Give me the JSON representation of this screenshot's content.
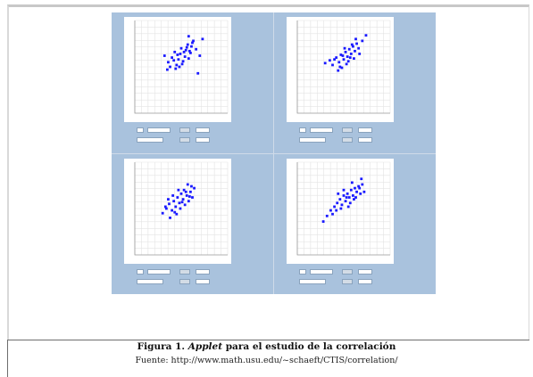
{
  "caption": {
    "prefix": "Figura 1.",
    "italic": "Applet",
    "suffix": "para el estudio de la correlación"
  },
  "source": "Fuente: http://www.math.usu.edu/~schaeft/CTIS/correlation/",
  "colors": {
    "figure_bg": "#a9c2dd",
    "plot_bg": "#ffffff",
    "points": "#1a1aff",
    "grid": "#e3e3e3"
  },
  "chart_data": [
    {
      "type": "scatter",
      "panel": "top-left",
      "points": [
        [
          0.32,
          0.62
        ],
        [
          0.36,
          0.55
        ],
        [
          0.4,
          0.6
        ],
        [
          0.43,
          0.66
        ],
        [
          0.45,
          0.52
        ],
        [
          0.47,
          0.58
        ],
        [
          0.49,
          0.64
        ],
        [
          0.5,
          0.7
        ],
        [
          0.52,
          0.56
        ],
        [
          0.54,
          0.61
        ],
        [
          0.55,
          0.68
        ],
        [
          0.57,
          0.74
        ],
        [
          0.58,
          0.59
        ],
        [
          0.6,
          0.65
        ],
        [
          0.61,
          0.72
        ],
        [
          0.63,
          0.78
        ],
        [
          0.44,
          0.48
        ],
        [
          0.48,
          0.5
        ],
        [
          0.53,
          0.66
        ],
        [
          0.58,
          0.83
        ],
        [
          0.66,
          0.69
        ],
        [
          0.7,
          0.62
        ],
        [
          0.73,
          0.8
        ],
        [
          0.38,
          0.5
        ],
        [
          0.42,
          0.57
        ],
        [
          0.51,
          0.53
        ],
        [
          0.56,
          0.71
        ],
        [
          0.62,
          0.76
        ],
        [
          0.68,
          0.43
        ],
        [
          0.46,
          0.63
        ],
        [
          0.35,
          0.47
        ],
        [
          0.59,
          0.67
        ]
      ]
    },
    {
      "type": "scatter",
      "panel": "top-right",
      "points": [
        [
          0.3,
          0.54
        ],
        [
          0.35,
          0.57
        ],
        [
          0.38,
          0.52
        ],
        [
          0.42,
          0.6
        ],
        [
          0.45,
          0.55
        ],
        [
          0.47,
          0.63
        ],
        [
          0.5,
          0.58
        ],
        [
          0.52,
          0.66
        ],
        [
          0.54,
          0.61
        ],
        [
          0.56,
          0.69
        ],
        [
          0.58,
          0.64
        ],
        [
          0.6,
          0.72
        ],
        [
          0.62,
          0.67
        ],
        [
          0.64,
          0.75
        ],
        [
          0.48,
          0.49
        ],
        [
          0.44,
          0.46
        ],
        [
          0.53,
          0.53
        ],
        [
          0.57,
          0.6
        ],
        [
          0.61,
          0.59
        ],
        [
          0.66,
          0.7
        ],
        [
          0.7,
          0.78
        ],
        [
          0.74,
          0.84
        ],
        [
          0.4,
          0.58
        ],
        [
          0.51,
          0.7
        ],
        [
          0.55,
          0.56
        ],
        [
          0.59,
          0.74
        ],
        [
          0.63,
          0.8
        ],
        [
          0.46,
          0.5
        ],
        [
          0.49,
          0.62
        ],
        [
          0.67,
          0.64
        ]
      ]
    },
    {
      "type": "scatter",
      "panel": "bottom-left",
      "points": [
        [
          0.3,
          0.45
        ],
        [
          0.34,
          0.5
        ],
        [
          0.37,
          0.55
        ],
        [
          0.4,
          0.48
        ],
        [
          0.42,
          0.58
        ],
        [
          0.44,
          0.52
        ],
        [
          0.46,
          0.62
        ],
        [
          0.48,
          0.56
        ],
        [
          0.5,
          0.66
        ],
        [
          0.52,
          0.6
        ],
        [
          0.54,
          0.54
        ],
        [
          0.56,
          0.64
        ],
        [
          0.58,
          0.58
        ],
        [
          0.6,
          0.68
        ],
        [
          0.62,
          0.62
        ],
        [
          0.64,
          0.72
        ],
        [
          0.38,
          0.4
        ],
        [
          0.45,
          0.44
        ],
        [
          0.53,
          0.7
        ],
        [
          0.57,
          0.76
        ],
        [
          0.36,
          0.6
        ],
        [
          0.41,
          0.64
        ],
        [
          0.49,
          0.5
        ],
        [
          0.55,
          0.68
        ],
        [
          0.61,
          0.74
        ],
        [
          0.43,
          0.46
        ],
        [
          0.51,
          0.57
        ],
        [
          0.59,
          0.63
        ],
        [
          0.47,
          0.7
        ],
        [
          0.33,
          0.52
        ]
      ]
    },
    {
      "type": "scatter",
      "panel": "bottom-right",
      "points": [
        [
          0.28,
          0.36
        ],
        [
          0.32,
          0.42
        ],
        [
          0.36,
          0.48
        ],
        [
          0.4,
          0.52
        ],
        [
          0.43,
          0.56
        ],
        [
          0.46,
          0.6
        ],
        [
          0.48,
          0.54
        ],
        [
          0.5,
          0.64
        ],
        [
          0.52,
          0.58
        ],
        [
          0.54,
          0.66
        ],
        [
          0.56,
          0.62
        ],
        [
          0.58,
          0.7
        ],
        [
          0.6,
          0.64
        ],
        [
          0.62,
          0.72
        ],
        [
          0.64,
          0.68
        ],
        [
          0.66,
          0.74
        ],
        [
          0.68,
          0.66
        ],
        [
          0.7,
          0.76
        ],
        [
          0.44,
          0.66
        ],
        [
          0.5,
          0.7
        ],
        [
          0.55,
          0.52
        ],
        [
          0.61,
          0.6
        ],
        [
          0.67,
          0.72
        ],
        [
          0.72,
          0.68
        ],
        [
          0.38,
          0.44
        ],
        [
          0.47,
          0.5
        ],
        [
          0.57,
          0.56
        ],
        [
          0.63,
          0.62
        ],
        [
          0.53,
          0.62
        ],
        [
          0.59,
          0.78
        ],
        [
          0.69,
          0.82
        ],
        [
          0.42,
          0.48
        ]
      ]
    }
  ]
}
